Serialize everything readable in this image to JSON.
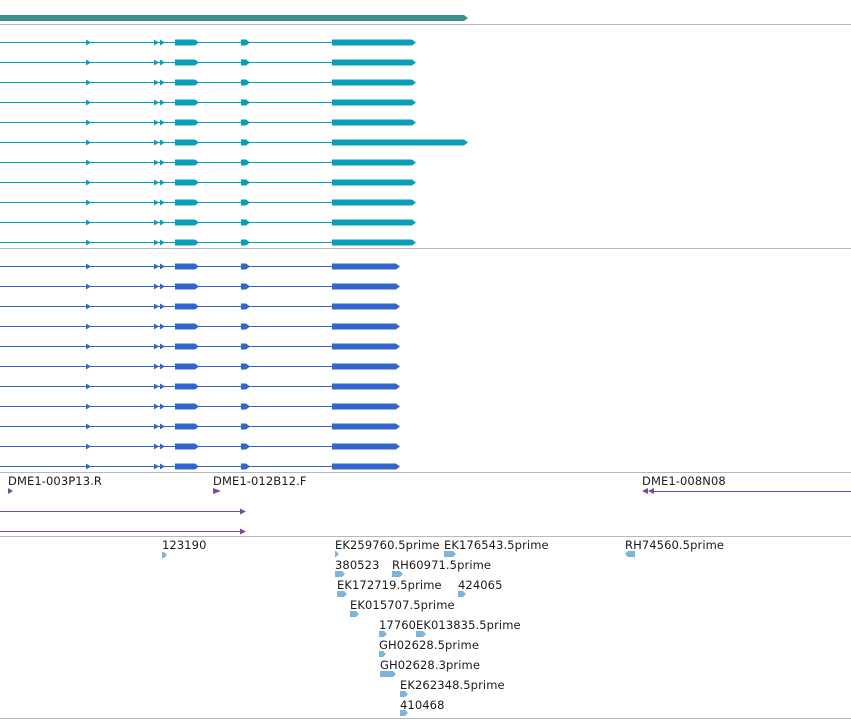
{
  "colors": {
    "gene_top": "#3d8f8f",
    "track_teal": "#0a9fb8",
    "track_blue": "#3366cc",
    "clone_purple": "#7a4a9e",
    "est_light_blue": "#7db4dc",
    "separator": "#b8b8b8",
    "label_text": "#1a1a1a"
  },
  "tracks": {
    "teal_group": {
      "color_key": "track_teal",
      "transcript_count": 11,
      "extended_index": 5
    },
    "blue_group": {
      "color_key": "track_blue",
      "transcript_count": 11
    },
    "clone_labels": [
      "DME1-003P13.R",
      "DME1-012B12.F",
      "DME1-008N08"
    ],
    "est_labels": [
      "123190",
      "EK259760.5prime",
      "EK176543.5prime",
      "RH74560.5prime",
      "380523",
      "RH60971.5prime",
      "EK172719.5prime",
      "424065",
      "EK015707.5prime",
      "17760",
      "EK013835.5prime",
      "GH02628.5prime",
      "GH02628.3prime",
      "EK262348.5prime",
      "410468"
    ]
  }
}
